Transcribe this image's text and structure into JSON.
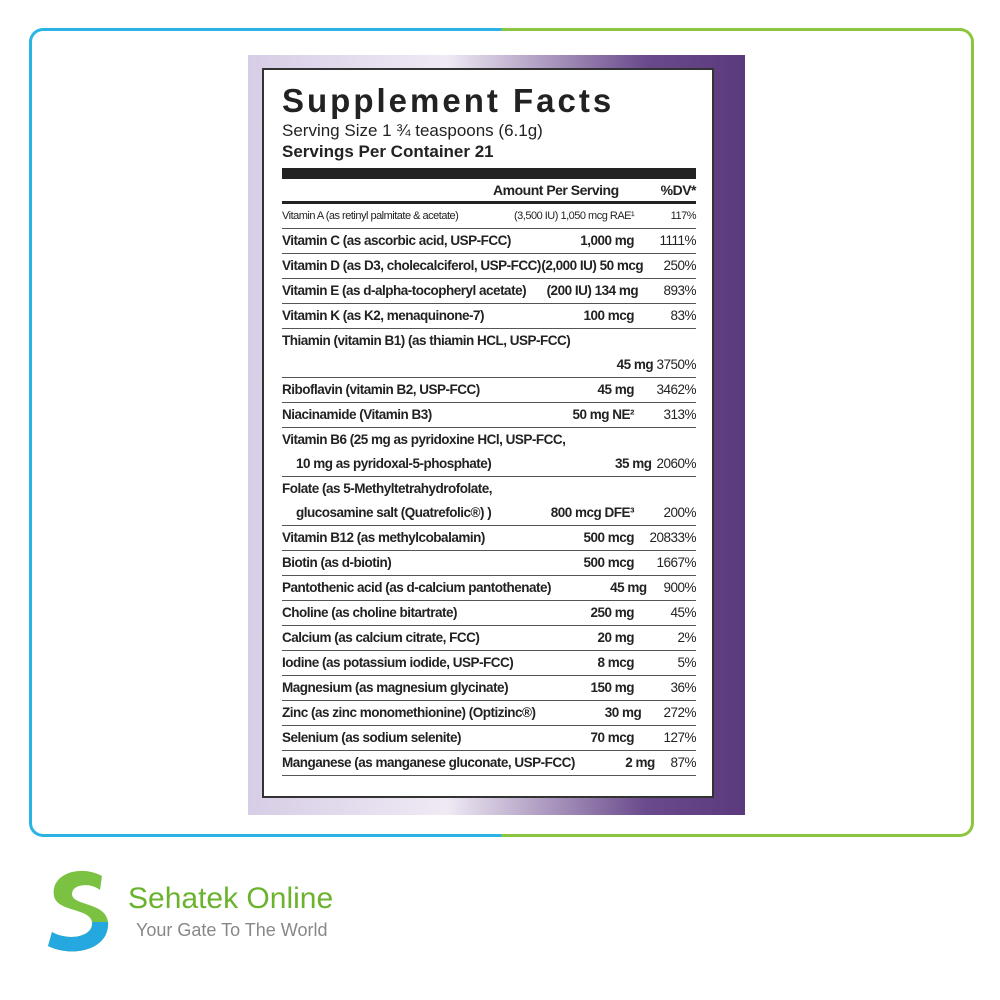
{
  "label": {
    "title": "Supplement Facts",
    "serving_size": "Serving Size 1 ¾ teaspoons (6.1g)",
    "servings_per_container": "Servings Per Container 21",
    "header": {
      "amount": "Amount Per Serving",
      "dv": "%DV*"
    },
    "rows": [
      {
        "name": [
          "Vitamin A (as retinyl palmitate & acetate)"
        ],
        "amount": "(3,500 IU) 1,050 mcg RAE¹",
        "dv": "117%"
      },
      {
        "name": [
          "Vitamin C (as ascorbic acid, USP-FCC)"
        ],
        "amount": "1,000 mg",
        "dv": "1111%"
      },
      {
        "name": [
          "Vitamin D (as D3, cholecalciferol, USP-FCC)"
        ],
        "amount": "(2,000 IU) 50 mcg",
        "dv": "250%"
      },
      {
        "name": [
          "Vitamin E (as d-alpha-tocopheryl acetate)"
        ],
        "amount": "(200 IU) 134 mg",
        "dv": "893%"
      },
      {
        "name": [
          "Vitamin K (as K2, menaquinone-7)"
        ],
        "amount": "100 mcg",
        "dv": "83%"
      },
      {
        "name": [
          "Thiamin (vitamin B1) (as thiamin HCL, USP-FCC)",
          ""
        ],
        "amount": "45 mg",
        "dv": "3750%"
      },
      {
        "name": [
          "Riboflavin (vitamin B2, USP-FCC)"
        ],
        "amount": "45 mg",
        "dv": "3462%"
      },
      {
        "name": [
          "Niacinamide (Vitamin B3)"
        ],
        "amount": "50 mg NE²",
        "dv": "313%"
      },
      {
        "name": [
          "Vitamin B6 (25 mg as pyridoxine HCl, USP-FCC,",
          "10 mg as pyridoxal-5-phosphate)"
        ],
        "amount": "35 mg",
        "dv": "2060%"
      },
      {
        "name": [
          "Folate (as 5-Methyltetrahydrofolate,",
          "glucosamine salt (Quatrefolic®) )"
        ],
        "amount": "800 mcg DFE³",
        "dv": "200%"
      },
      {
        "name": [
          "Vitamin B12 (as methylcobalamin)"
        ],
        "amount": "500 mcg",
        "dv": "20833%"
      },
      {
        "name": [
          "Biotin (as d-biotin)"
        ],
        "amount": "500 mcg",
        "dv": "1667%"
      },
      {
        "name": [
          "Pantothenic acid (as d-calcium pantothenate)"
        ],
        "amount": "45 mg",
        "dv": "900%"
      },
      {
        "name": [
          "Choline (as choline bitartrate)"
        ],
        "amount": "250 mg",
        "dv": "45%"
      },
      {
        "name": [
          "Calcium (as calcium citrate, FCC)"
        ],
        "amount": "20 mg",
        "dv": "2%"
      },
      {
        "name": [
          "Iodine (as potassium iodide, USP-FCC)"
        ],
        "amount": "8 mcg",
        "dv": "5%"
      },
      {
        "name": [
          "Magnesium (as magnesium glycinate)"
        ],
        "amount": "150 mg",
        "dv": "36%"
      },
      {
        "name": [
          "Zinc (as zinc monomethionine) (Optizinc®)"
        ],
        "amount": "30 mg",
        "dv": "272%"
      },
      {
        "name": [
          "Selenium (as sodium selenite)"
        ],
        "amount": "70 mcg",
        "dv": "127%"
      },
      {
        "name": [
          "Manganese (as manganese gluconate, USP-FCC)"
        ],
        "amount": "2 mg",
        "dv": "87%"
      }
    ]
  },
  "brand": {
    "name": "Sehatek Online",
    "tagline": "Your Gate To The World"
  }
}
